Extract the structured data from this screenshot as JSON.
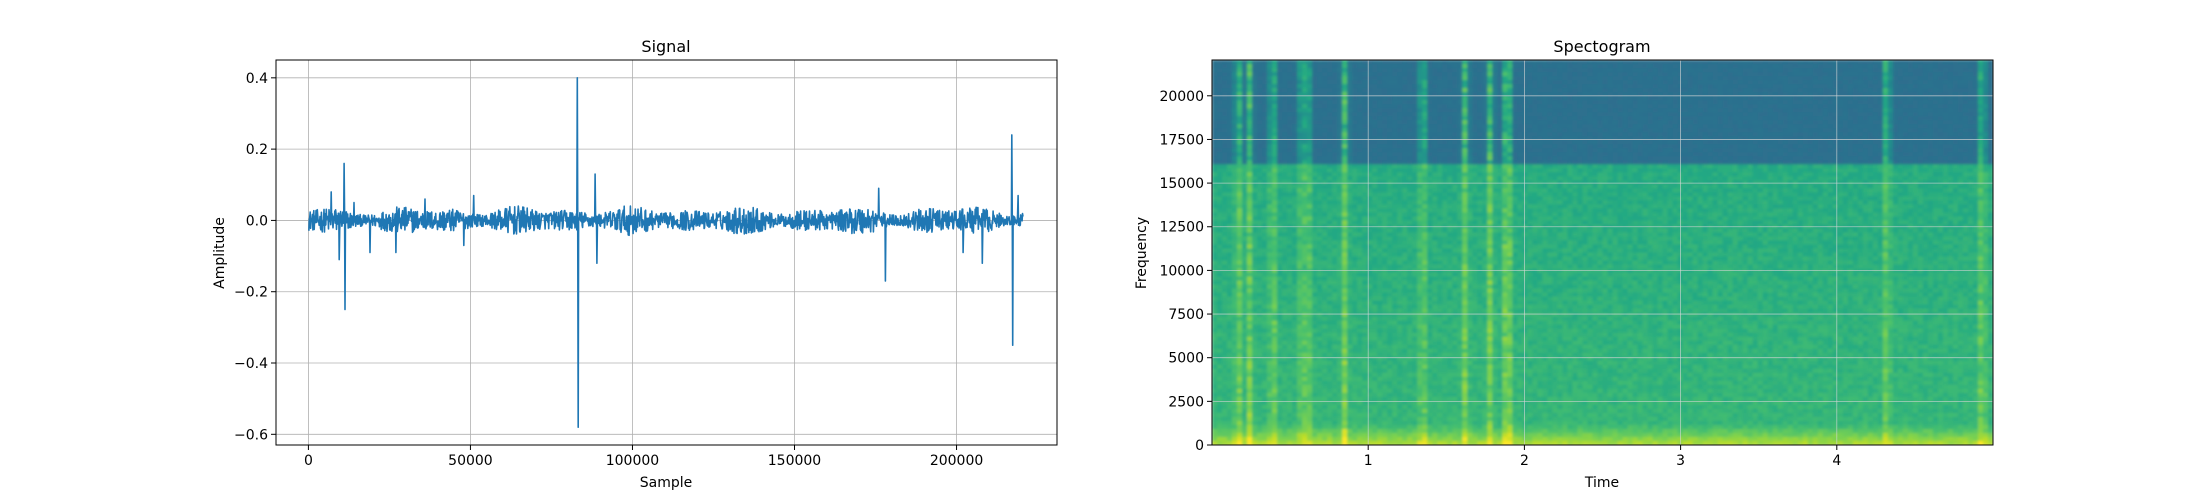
{
  "chart_data": [
    {
      "type": "line",
      "title": "Signal",
      "xlabel": "Sample",
      "ylabel": "Amplitude",
      "xlim": [
        -10000,
        231000
      ],
      "ylim": [
        -0.63,
        0.45
      ],
      "xticks": [
        0,
        50000,
        100000,
        150000,
        200000
      ],
      "xtick_labels": [
        "0",
        "50000",
        "100000",
        "150000",
        "200000"
      ],
      "yticks": [
        0.4,
        0.2,
        0.0,
        -0.2,
        -0.4,
        -0.6
      ],
      "ytick_labels": [
        "0.4",
        "0.2",
        "0.0",
        "−0.2",
        "−0.4",
        "−0.6"
      ],
      "grid": true,
      "color": "#1f77b4",
      "noise_amplitude": 0.03,
      "x_end": 220500,
      "spikes": [
        {
          "x": 7000,
          "y": 0.08
        },
        {
          "x": 9500,
          "y": -0.11
        },
        {
          "x": 11000,
          "y": 0.16
        },
        {
          "x": 11300,
          "y": -0.25
        },
        {
          "x": 14000,
          "y": 0.05
        },
        {
          "x": 19000,
          "y": -0.09
        },
        {
          "x": 27000,
          "y": -0.09
        },
        {
          "x": 36000,
          "y": 0.06
        },
        {
          "x": 48000,
          "y": -0.07
        },
        {
          "x": 51000,
          "y": 0.07
        },
        {
          "x": 83000,
          "y": 0.4
        },
        {
          "x": 83300,
          "y": -0.58
        },
        {
          "x": 88500,
          "y": 0.13
        },
        {
          "x": 89000,
          "y": -0.12
        },
        {
          "x": 176000,
          "y": 0.09
        },
        {
          "x": 178000,
          "y": -0.17
        },
        {
          "x": 202000,
          "y": -0.09
        },
        {
          "x": 208000,
          "y": -0.12
        },
        {
          "x": 217000,
          "y": 0.24
        },
        {
          "x": 217300,
          "y": -0.35
        },
        {
          "x": 219000,
          "y": 0.07
        }
      ]
    },
    {
      "type": "heatmap",
      "title": "Spectogram",
      "xlabel": "Time",
      "ylabel": "Frequency",
      "xlim": [
        0.0,
        5.0
      ],
      "ylim": [
        0,
        22050
      ],
      "xticks": [
        1,
        2,
        3,
        4
      ],
      "xtick_labels": [
        "1",
        "2",
        "3",
        "4"
      ],
      "yticks": [
        0,
        2500,
        5000,
        7500,
        10000,
        12500,
        15000,
        17500,
        20000
      ],
      "ytick_labels": [
        "0",
        "2500",
        "5000",
        "7500",
        "10000",
        "12500",
        "15000",
        "17500",
        "20000"
      ],
      "grid": true,
      "colormap": "viridis",
      "cutoff_frequency": 16000,
      "transient_times": [
        0.17,
        0.24,
        0.39,
        0.58,
        0.61,
        0.85,
        1.35,
        1.62,
        1.78,
        1.88,
        1.9,
        4.32,
        4.93
      ]
    }
  ]
}
